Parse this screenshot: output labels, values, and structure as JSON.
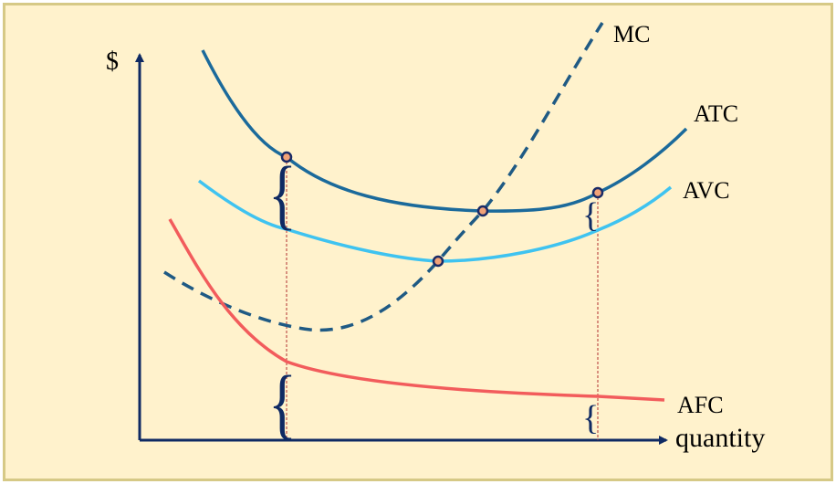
{
  "diagram": {
    "y_axis_label": "$",
    "x_axis_label": "quantity",
    "curves": {
      "mc": {
        "label": "MC",
        "color": "#1f5a84",
        "style": "dashed"
      },
      "atc": {
        "label": "ATC",
        "color": "#1b6a9b",
        "style": "solid"
      },
      "avc": {
        "label": "AVC",
        "color": "#3fc3f0",
        "style": "solid"
      },
      "afc": {
        "label": "AFC",
        "color": "#f25c5c",
        "style": "solid"
      }
    },
    "colors": {
      "background": "#fff2cc",
      "border": "#d6c986",
      "axes": "#0f2a63",
      "guide_lines": "#b03030",
      "markers": "#1a2a66",
      "marker_fill": "#f2a277"
    }
  }
}
